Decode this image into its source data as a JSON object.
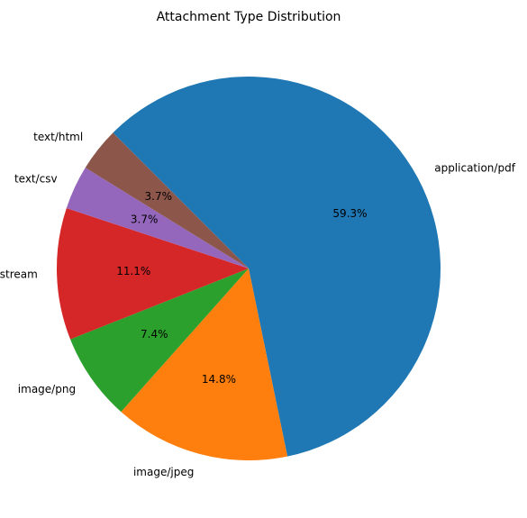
{
  "chart_data": {
    "type": "pie",
    "title": "Attachment Type Distribution",
    "start_angle_deg": 135,
    "direction": "clockwise",
    "slices": [
      {
        "label": "application/pdf",
        "percent": 59.3,
        "value": 16,
        "color": "#1f77b4"
      },
      {
        "label": "image/jpeg",
        "percent": 14.8,
        "value": 4,
        "color": "#ff7f0e"
      },
      {
        "label": "image/png",
        "percent": 7.4,
        "value": 2,
        "color": "#2ca02c"
      },
      {
        "label": "application/octet-stream",
        "percent": 11.1,
        "value": 3,
        "color": "#d62728"
      },
      {
        "label": "text/csv",
        "percent": 3.7,
        "value": 1,
        "color": "#9467bd"
      },
      {
        "label": "text/html",
        "percent": 3.7,
        "value": 1,
        "color": "#8c564b"
      }
    ]
  }
}
